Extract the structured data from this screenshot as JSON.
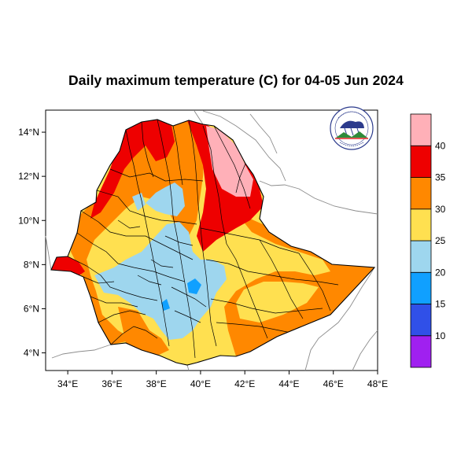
{
  "title": "Daily maximum temperature (C) for 04-05 Jun 2024",
  "map": {
    "lon_range": [
      33,
      48
    ],
    "lat_range": [
      3.2,
      15
    ],
    "x_ticks": [
      {
        "lon": 34,
        "label": "34°E"
      },
      {
        "lon": 36,
        "label": "36°E"
      },
      {
        "lon": 38,
        "label": "38°E"
      },
      {
        "lon": 40,
        "label": "40°E"
      },
      {
        "lon": 42,
        "label": "42°E"
      },
      {
        "lon": 44,
        "label": "44°E"
      },
      {
        "lon": 46,
        "label": "46°E"
      },
      {
        "lon": 48,
        "label": "48°E"
      }
    ],
    "y_ticks": [
      {
        "lat": 4,
        "label": "4°N"
      },
      {
        "lat": 6,
        "label": "6°N"
      },
      {
        "lat": 8,
        "label": "8°N"
      },
      {
        "lat": 10,
        "label": "10°N"
      },
      {
        "lat": 12,
        "label": "12°N"
      },
      {
        "lat": 14,
        "label": "14°N"
      }
    ]
  },
  "colorbar": {
    "bins": [
      {
        "color": "#a020f0"
      },
      {
        "color": "#3050e8"
      },
      {
        "color": "#10a0ff"
      },
      {
        "color": "#9ed6ee"
      },
      {
        "color": "#ffe050"
      },
      {
        "color": "#ff8800"
      },
      {
        "color": "#ee0000"
      },
      {
        "color": "#ffb0b8"
      }
    ],
    "labels": [
      "10",
      "15",
      "20",
      "25",
      "30",
      "35",
      "40"
    ]
  },
  "colors": {
    "pink": "#ffb0b8",
    "red": "#ee0000",
    "orange": "#ff8800",
    "yellow": "#ffe050",
    "lightblue": "#9ed6ee",
    "blue": "#10a0ff"
  }
}
